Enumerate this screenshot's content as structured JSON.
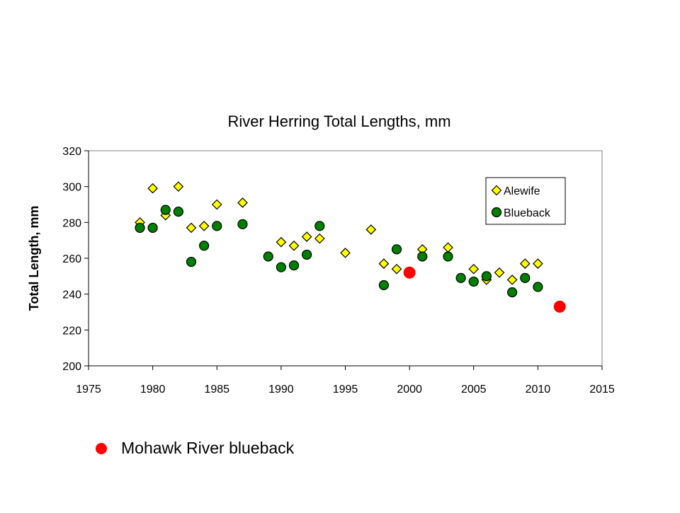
{
  "chart_data": {
    "type": "scatter",
    "title": "River Herring Total Lengths, mm",
    "xlabel": "",
    "ylabel": "Total Length, mm",
    "xlim": [
      1975,
      2015
    ],
    "ylim": [
      200,
      320
    ],
    "xticks": [
      1975,
      1980,
      1985,
      1990,
      1995,
      2000,
      2005,
      2010,
      2015
    ],
    "yticks": [
      200,
      220,
      240,
      260,
      280,
      300,
      320
    ],
    "grid": false,
    "legend_position": "top-right",
    "series": [
      {
        "name": "Alewife",
        "marker": "diamond",
        "color": "#ffff00",
        "x": [
          1979,
          1980,
          1981,
          1982,
          1983,
          1984,
          1985,
          1987,
          1990,
          1991,
          1992,
          1993,
          1995,
          1997,
          1998,
          1999,
          2001,
          2003,
          2005,
          2006,
          2007,
          2008,
          2009,
          2010
        ],
        "y": [
          280,
          299,
          284,
          300,
          277,
          278,
          290,
          291,
          269,
          267,
          272,
          271,
          263,
          276,
          257,
          254,
          265,
          266,
          254,
          248,
          252,
          248,
          257,
          257
        ]
      },
      {
        "name": "Blueback",
        "marker": "circle",
        "color": "#008000",
        "x": [
          1979,
          1980,
          1981,
          1982,
          1983,
          1984,
          1985,
          1987,
          1989,
          1990,
          1991,
          1992,
          1993,
          1998,
          1999,
          2001,
          2003,
          2004,
          2005,
          2006,
          2008,
          2009,
          2010
        ],
        "y": [
          277,
          277,
          287,
          286,
          258,
          267,
          278,
          279,
          261,
          255,
          256,
          262,
          278,
          245,
          265,
          261,
          261,
          249,
          247,
          250,
          241,
          249,
          244
        ]
      },
      {
        "name": "Mohawk River blueback",
        "marker": "circle",
        "color": "#ff0000",
        "x": [
          2000,
          2011.7
        ],
        "y": [
          252,
          233
        ]
      }
    ]
  },
  "annotation": {
    "label": "Mohawk River blueback",
    "color": "#ff0000"
  }
}
